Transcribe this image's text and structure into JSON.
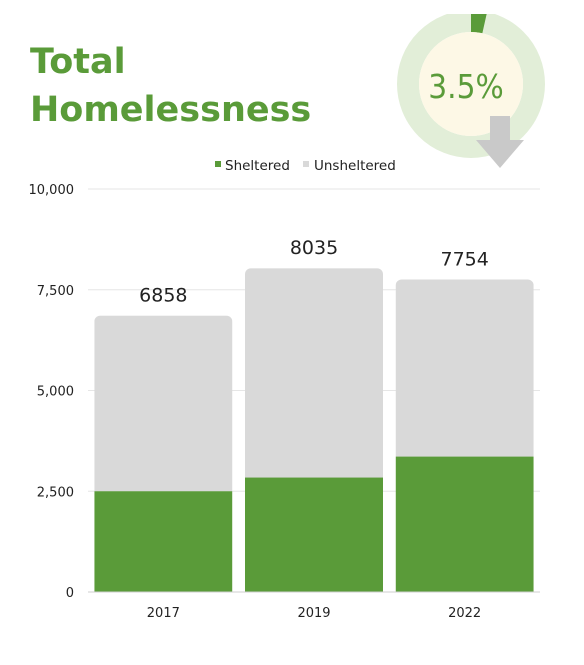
{
  "header": {
    "title_line1": "Total",
    "title_line2": "Homelessness"
  },
  "kpi": {
    "value": "3.5%",
    "direction": "down",
    "icon": "down-arrow-icon",
    "ring_fraction": 0.035
  },
  "colors": {
    "sheltered": "#5a9b39",
    "unsheltered": "#d9d9d9",
    "title": "#5a9b39",
    "kpi_ring": "#e2eed8",
    "kpi_center": "#fdf8e6",
    "arrow": "#c9c9c9"
  },
  "chart_data": {
    "type": "bar",
    "stacked": true,
    "categories": [
      "2017",
      "2019",
      "2022"
    ],
    "series": [
      {
        "name": "Sheltered",
        "values": [
          2500,
          2840,
          3360
        ]
      },
      {
        "name": "Unsheltered",
        "values": [
          4358,
          5195,
          4394
        ]
      }
    ],
    "totals": [
      6858,
      8035,
      7754
    ],
    "total_labels": [
      "6858",
      "8035",
      "7754"
    ],
    "yticks": [
      0,
      2500,
      5000,
      7500,
      10000
    ],
    "ytick_labels": [
      "0",
      "2,500",
      "5,000",
      "7,500",
      "10,000"
    ],
    "ylim": [
      0,
      10000
    ],
    "grid": true,
    "legend_position": "top-center"
  }
}
